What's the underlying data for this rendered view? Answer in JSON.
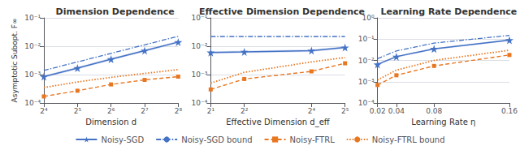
{
  "chart_data": [
    {
      "type": "line",
      "title": "Dimension Dependence",
      "x_label": "Dimension d",
      "y_label": "Asymptotic Subopt. F∞",
      "x": [
        16,
        32,
        64,
        128,
        256
      ],
      "xlim": [
        16,
        256
      ],
      "xticks": [
        {
          "value": 16,
          "label": "2⁴"
        },
        {
          "value": 32,
          "label": "2⁵"
        },
        {
          "value": 64,
          "label": "2⁶"
        },
        {
          "value": 128,
          "label": "2⁷"
        },
        {
          "value": 256,
          "label": "2⁸"
        }
      ],
      "ylim": [
        0.0001,
        0.1
      ],
      "yticks": [
        {
          "value": 0.0001,
          "label": "10⁻⁴"
        },
        {
          "value": 0.001,
          "label": "10⁻³"
        },
        {
          "value": 0.01,
          "label": "10⁻²"
        },
        {
          "value": 0.1,
          "label": "10⁻¹"
        }
      ],
      "log": true,
      "grid": true,
      "legend": "bottom",
      "series": [
        {
          "name": "Noisy-SGD",
          "color": "#4472C4",
          "marker": "star",
          "line_style": "solid",
          "values": [
            0.00085,
            0.0017,
            0.0035,
            0.007,
            0.014
          ],
          "band_low": [
            0.000765,
            0.00153,
            0.00315,
            0.0063,
            0.0126
          ],
          "band_high": [
            0.000935,
            0.00187,
            0.00385,
            0.0077,
            0.0154
          ],
          "band_color": "#aabfe8"
        },
        {
          "name": "Noisy-SGD bound",
          "color": "#4472C4",
          "marker": "none",
          "line_style": "dashdot",
          "values": [
            0.0014,
            0.0028,
            0.0056,
            0.0112,
            0.0224
          ]
        },
        {
          "name": "Noisy-FTRL",
          "color": "#E87722",
          "marker": "square",
          "line_style": "dashed",
          "values": [
            0.00017,
            0.00027,
            0.00045,
            0.00065,
            0.00085
          ]
        },
        {
          "name": "Noisy-FTRL bound",
          "color": "#E87722",
          "marker": "none",
          "line_style": "dotted",
          "values": [
            0.00035,
            0.00055,
            0.0008,
            0.0011,
            0.0015
          ]
        }
      ]
    },
    {
      "type": "line",
      "title": "Effective Dimension Dependence",
      "x_label": "Effective Dimension d_eff",
      "x": [
        2,
        4,
        16,
        32
      ],
      "xlim": [
        2,
        32
      ],
      "xticks": [
        {
          "value": 2,
          "label": "2¹"
        },
        {
          "value": 4,
          "label": "2²"
        },
        {
          "value": 16,
          "label": "2⁴"
        },
        {
          "value": 32,
          "label": "2⁵"
        }
      ],
      "ylim": [
        0.0001,
        0.1
      ],
      "yticks": [
        {
          "value": 0.0001,
          "label": "10⁻⁴"
        },
        {
          "value": 0.001,
          "label": "10⁻³"
        },
        {
          "value": 0.01,
          "label": "10⁻²"
        },
        {
          "value": 0.1,
          "label": "10⁻¹"
        }
      ],
      "log": true,
      "grid": true,
      "legend": "bottom",
      "series": [
        {
          "name": "Noisy-SGD",
          "color": "#4472C4",
          "marker": "star",
          "line_style": "solid",
          "values": [
            0.006,
            0.0063,
            0.007,
            0.009
          ],
          "band_low": [
            0.0054,
            0.00567,
            0.0063,
            0.0081
          ],
          "band_high": [
            0.0066,
            0.00693,
            0.0077,
            0.0099
          ],
          "band_color": "#aabfe8"
        },
        {
          "name": "Noisy-SGD bound",
          "color": "#4472C4",
          "marker": "none",
          "line_style": "dashdot",
          "values": [
            0.022,
            0.022,
            0.022,
            0.022
          ]
        },
        {
          "name": "Noisy-FTRL",
          "color": "#E87722",
          "marker": "square",
          "line_style": "dashed",
          "values": [
            0.0003,
            0.0007,
            0.0013,
            0.0025
          ]
        },
        {
          "name": "Noisy-FTRL bound",
          "color": "#E87722",
          "marker": "none",
          "line_style": "dotted",
          "values": [
            0.0005,
            0.0012,
            0.0028,
            0.004
          ]
        }
      ]
    },
    {
      "type": "line",
      "title": "Learning Rate Dependence",
      "x_label": "Learning Rate η",
      "x": [
        0.02,
        0.04,
        0.08,
        0.16
      ],
      "xlim": [
        0.02,
        0.16
      ],
      "xticks": [
        0.02,
        0.04,
        0.08,
        0.16
      ],
      "ylim": [
        0.0001,
        1
      ],
      "yticks": [
        {
          "value": 0.0001,
          "label": "10⁻⁴"
        },
        {
          "value": 0.001,
          "label": "10⁻³"
        },
        {
          "value": 0.01,
          "label": "10⁻²"
        },
        {
          "value": 0.1,
          "label": "10⁻¹"
        },
        {
          "value": 1,
          "label": "10⁰"
        }
      ],
      "log": "y",
      "grid": true,
      "legend": "bottom",
      "series": [
        {
          "name": "Noisy-SGD",
          "color": "#4472C4",
          "marker": "star",
          "line_style": "solid",
          "values": [
            0.0065,
            0.015,
            0.035,
            0.09
          ],
          "band_low": [
            0.00585,
            0.0135,
            0.0315,
            0.081
          ],
          "band_high": [
            0.00715,
            0.0165,
            0.0385,
            0.099
          ],
          "band_color": "#aabfe8"
        },
        {
          "name": "Noisy-SGD bound",
          "color": "#4472C4",
          "marker": "none",
          "line_style": "dashdot",
          "values": [
            0.012,
            0.028,
            0.065,
            0.15
          ]
        },
        {
          "name": "Noisy-FTRL",
          "color": "#E87722",
          "marker": "square",
          "line_style": "dashed",
          "values": [
            0.0007,
            0.002,
            0.0055,
            0.018
          ]
        },
        {
          "name": "Noisy-FTRL bound",
          "color": "#E87722",
          "marker": "none",
          "line_style": "dotted",
          "values": [
            0.0012,
            0.0035,
            0.01,
            0.03
          ]
        }
      ]
    }
  ]
}
